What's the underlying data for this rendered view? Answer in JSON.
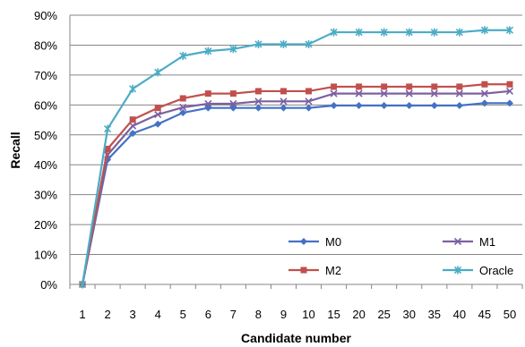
{
  "chart_data": {
    "type": "line",
    "title": "",
    "xlabel": "Candidate number",
    "ylabel": "Recall",
    "categories": [
      "1",
      "2",
      "3",
      "4",
      "5",
      "6",
      "7",
      "8",
      "9",
      "10",
      "15",
      "20",
      "25",
      "30",
      "35",
      "40",
      "45",
      "50"
    ],
    "ylim": [
      0,
      90
    ],
    "yticks": [
      "0%",
      "10%",
      "20%",
      "30%",
      "40%",
      "50%",
      "60%",
      "70%",
      "80%",
      "90%"
    ],
    "grid": "horizontal",
    "legend_position": "bottom-right",
    "series": [
      {
        "name": "M0",
        "color": "#4472C4",
        "marker": "diamond",
        "values": [
          0,
          41.7,
          50.5,
          53.6,
          57.4,
          59.0,
          59.0,
          59.0,
          59.0,
          59.0,
          59.8,
          59.8,
          59.8,
          59.8,
          59.8,
          59.8,
          60.6,
          60.6
        ]
      },
      {
        "name": "M1",
        "color": "#7D60A0",
        "marker": "x",
        "values": [
          0,
          43.3,
          53.0,
          56.8,
          59.2,
          60.4,
          60.4,
          61.2,
          61.2,
          61.2,
          63.8,
          63.8,
          63.8,
          63.8,
          63.8,
          63.8,
          63.8,
          64.6
        ]
      },
      {
        "name": "M2",
        "color": "#C0504D",
        "marker": "square",
        "values": [
          0,
          45.3,
          55.1,
          59.0,
          62.2,
          63.8,
          63.8,
          64.6,
          64.6,
          64.6,
          66.1,
          66.1,
          66.1,
          66.1,
          66.1,
          66.1,
          66.9,
          66.9
        ]
      },
      {
        "name": "Oracle",
        "color": "#4BACC6",
        "marker": "star",
        "values": [
          0,
          52.0,
          65.4,
          70.9,
          76.4,
          78.0,
          78.7,
          80.3,
          80.3,
          80.3,
          84.3,
          84.3,
          84.3,
          84.3,
          84.3,
          84.3,
          85.0,
          85.0
        ]
      }
    ]
  }
}
